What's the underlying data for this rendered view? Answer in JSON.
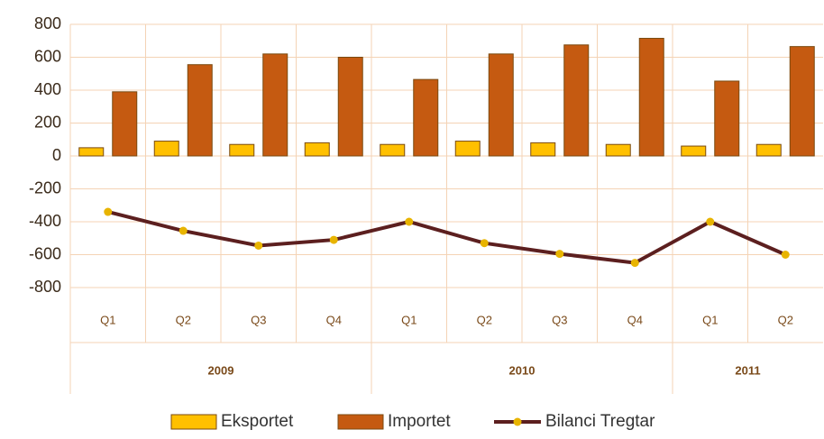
{
  "chart_data": {
    "type": "bar",
    "groups": [
      {
        "label": "2009",
        "categories": [
          "Q1",
          "Q2",
          "Q3",
          "Q4"
        ]
      },
      {
        "label": "2010",
        "categories": [
          "Q1",
          "Q2",
          "Q3",
          "Q4"
        ]
      },
      {
        "label": "2011",
        "categories": [
          "Q1",
          "Q2"
        ]
      }
    ],
    "series": [
      {
        "name": "Eksportet",
        "type": "bar",
        "color": "#FFC000",
        "values": [
          50,
          90,
          70,
          80,
          70,
          90,
          80,
          70,
          60,
          70
        ]
      },
      {
        "name": "Importet",
        "type": "bar",
        "color": "#C55A11",
        "values": [
          390,
          555,
          620,
          600,
          465,
          620,
          675,
          715,
          455,
          665
        ]
      },
      {
        "name": "Bilanci Tregtar",
        "type": "line",
        "color": "#5C1F1F",
        "marker_color": "#E8B400",
        "values": [
          -340,
          -455,
          -545,
          -510,
          -400,
          -530,
          -595,
          -650,
          -400,
          -600
        ]
      }
    ],
    "ylim": [
      -800,
      800
    ],
    "yticks": [
      -800,
      -600,
      -400,
      -200,
      0,
      200,
      400,
      600,
      800
    ],
    "grid": true,
    "legend": "bottom"
  }
}
